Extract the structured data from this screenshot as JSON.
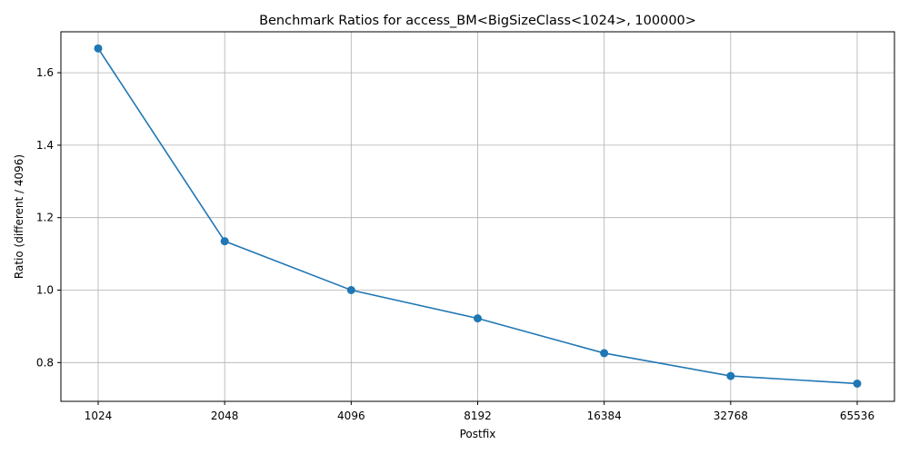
{
  "chart_data": {
    "type": "line",
    "title": "Benchmark Ratios for access_BM<BigSizeClass<1024>, 100000>",
    "xlabel": "Postfix",
    "ylabel": "Ratio (different / 4096)",
    "categories": [
      "1024",
      "2048",
      "4096",
      "8192",
      "16384",
      "32768",
      "65536"
    ],
    "series": [
      {
        "values": [
          1.667,
          1.135,
          1.0,
          0.922,
          0.826,
          0.763,
          0.742
        ],
        "color": "#1f77b4",
        "marker": "circle"
      }
    ],
    "ylim": [
      0.693,
      1.713
    ],
    "yticks": [
      0.8,
      1.0,
      1.2,
      1.4,
      1.6
    ],
    "ytick_labels": [
      "0.8",
      "1.0",
      "1.2",
      "1.4",
      "1.6"
    ],
    "grid": true,
    "legend": "none"
  }
}
